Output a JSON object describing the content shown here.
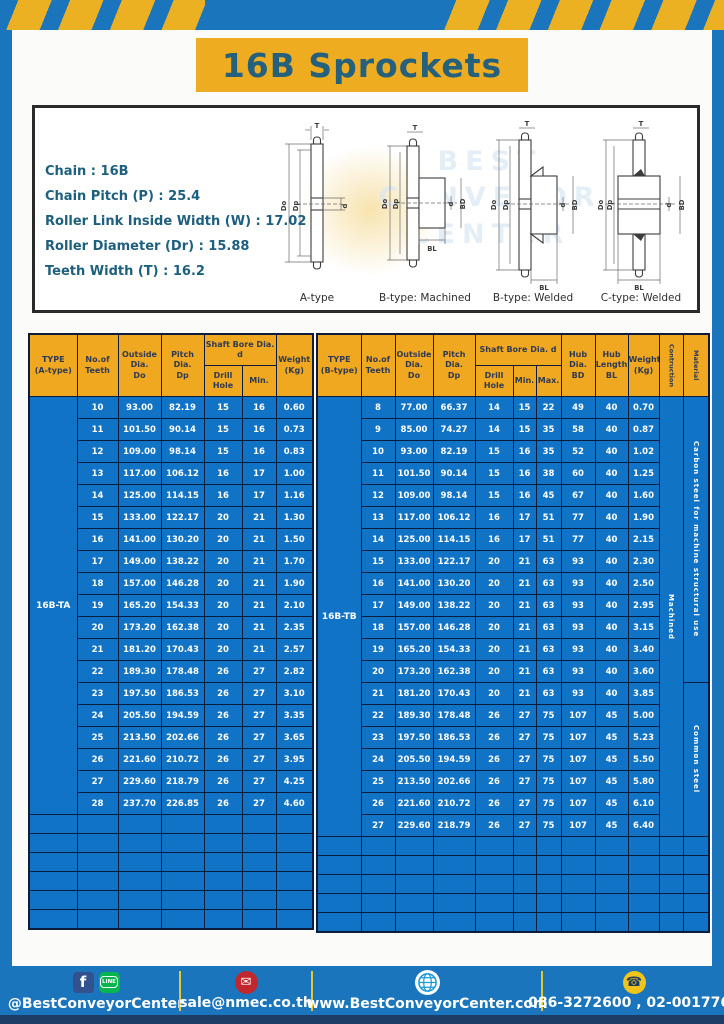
{
  "title": "16B Sprockets",
  "specs": {
    "lines": [
      "Chain : 16B",
      "Chain Pitch (P) : 25.4",
      "Roller Link Inside Width (W) : 17.02",
      "Roller Diameter (Dr) : 15.88",
      "Teeth Width (T) : 16.2"
    ],
    "diagram_labels": [
      "A-type",
      "B-type: Machined",
      "B-type: Welded",
      "C-type: Welded"
    ],
    "dim_labels": {
      "t": "T",
      "outer": "Do",
      "pitch": "Dp",
      "bore": "d",
      "hub": "BD",
      "hublen": "BL"
    },
    "watermark": "BEST CONVEYOR CENTER"
  },
  "table_a": {
    "headers": {
      "type": "TYPE\n(A-type)",
      "teeth": "No.of\nTeeth",
      "outside": "Outside\nDia.\nDo",
      "pitch": "Pitch Dia.\nDp",
      "shaft": "Shaft Bore Dia. d",
      "drill": "Drill Hole",
      "min": "Min.",
      "weight": "Weight\n(Kg)"
    },
    "type_label": "16B-TA",
    "rows": [
      [
        "10",
        "93.00",
        "82.19",
        "15",
        "16",
        "0.60"
      ],
      [
        "11",
        "101.50",
        "90.14",
        "15",
        "16",
        "0.73"
      ],
      [
        "12",
        "109.00",
        "98.14",
        "15",
        "16",
        "0.83"
      ],
      [
        "13",
        "117.00",
        "106.12",
        "16",
        "17",
        "1.00"
      ],
      [
        "14",
        "125.00",
        "114.15",
        "16",
        "17",
        "1.16"
      ],
      [
        "15",
        "133.00",
        "122.17",
        "20",
        "21",
        "1.30"
      ],
      [
        "16",
        "141.00",
        "130.20",
        "20",
        "21",
        "1.50"
      ],
      [
        "17",
        "149.00",
        "138.22",
        "20",
        "21",
        "1.70"
      ],
      [
        "18",
        "157.00",
        "146.28",
        "20",
        "21",
        "1.90"
      ],
      [
        "19",
        "165.20",
        "154.33",
        "20",
        "21",
        "2.10"
      ],
      [
        "20",
        "173.20",
        "162.38",
        "20",
        "21",
        "2.35"
      ],
      [
        "21",
        "181.20",
        "170.43",
        "20",
        "21",
        "2.57"
      ],
      [
        "22",
        "189.30",
        "178.48",
        "26",
        "27",
        "2.82"
      ],
      [
        "23",
        "197.50",
        "186.53",
        "26",
        "27",
        "3.10"
      ],
      [
        "24",
        "205.50",
        "194.59",
        "26",
        "27",
        "3.35"
      ],
      [
        "25",
        "213.50",
        "202.66",
        "26",
        "27",
        "3.65"
      ],
      [
        "26",
        "221.60",
        "210.72",
        "26",
        "27",
        "3.95"
      ],
      [
        "27",
        "229.60",
        "218.79",
        "26",
        "27",
        "4.25"
      ],
      [
        "28",
        "237.70",
        "226.85",
        "26",
        "27",
        "4.60"
      ]
    ],
    "empty_rows": 6
  },
  "table_b": {
    "headers": {
      "type": "TYPE\n(B-type)",
      "teeth": "No.of\nTeeth",
      "outside": "Outside\nDia.\nDo",
      "pitch": "Pitch Dia.\nDp",
      "shaft": "Shaft Bore Dia. d",
      "drill": "Drill Hole",
      "min": "Min.",
      "max": "Max.",
      "hub_dia": "Hub Dia.\nBD",
      "hub_len": "Hub\nLength\nBL",
      "weight": "Weight\n(Kg)",
      "construction": "Contruction",
      "material": "Material"
    },
    "type_label": "16B-TB",
    "construction_label": "Machined",
    "material_cells": [
      {
        "label": "Carbon steel for machine structural use",
        "rows": 13
      },
      {
        "label": "Common steel",
        "rows": 7
      }
    ],
    "rows": [
      [
        "8",
        "77.00",
        "66.37",
        "14",
        "15",
        "22",
        "49",
        "40",
        "0.70"
      ],
      [
        "9",
        "85.00",
        "74.27",
        "14",
        "15",
        "35",
        "58",
        "40",
        "0.87"
      ],
      [
        "10",
        "93.00",
        "82.19",
        "15",
        "16",
        "35",
        "52",
        "40",
        "1.02"
      ],
      [
        "11",
        "101.50",
        "90.14",
        "15",
        "16",
        "38",
        "60",
        "40",
        "1.25"
      ],
      [
        "12",
        "109.00",
        "98.14",
        "15",
        "16",
        "45",
        "67",
        "40",
        "1.60"
      ],
      [
        "13",
        "117.00",
        "106.12",
        "16",
        "17",
        "51",
        "77",
        "40",
        "1.90"
      ],
      [
        "14",
        "125.00",
        "114.15",
        "16",
        "17",
        "51",
        "77",
        "40",
        "2.15"
      ],
      [
        "15",
        "133.00",
        "122.17",
        "20",
        "21",
        "63",
        "93",
        "40",
        "2.30"
      ],
      [
        "16",
        "141.00",
        "130.20",
        "20",
        "21",
        "63",
        "93",
        "40",
        "2.50"
      ],
      [
        "17",
        "149.00",
        "138.22",
        "20",
        "21",
        "63",
        "93",
        "40",
        "2.95"
      ],
      [
        "18",
        "157.00",
        "146.28",
        "20",
        "21",
        "63",
        "93",
        "40",
        "3.15"
      ],
      [
        "19",
        "165.20",
        "154.33",
        "20",
        "21",
        "63",
        "93",
        "40",
        "3.40"
      ],
      [
        "20",
        "173.20",
        "162.38",
        "20",
        "21",
        "63",
        "93",
        "40",
        "3.60"
      ],
      [
        "21",
        "181.20",
        "170.43",
        "20",
        "21",
        "63",
        "93",
        "40",
        "3.85"
      ],
      [
        "22",
        "189.30",
        "178.48",
        "26",
        "27",
        "75",
        "107",
        "45",
        "5.00"
      ],
      [
        "23",
        "197.50",
        "186.53",
        "26",
        "27",
        "75",
        "107",
        "45",
        "5.23"
      ],
      [
        "24",
        "205.50",
        "194.59",
        "26",
        "27",
        "75",
        "107",
        "45",
        "5.50"
      ],
      [
        "25",
        "213.50",
        "202.66",
        "26",
        "27",
        "75",
        "107",
        "45",
        "5.80"
      ],
      [
        "26",
        "221.60",
        "210.72",
        "26",
        "27",
        "75",
        "107",
        "45",
        "6.10"
      ],
      [
        "27",
        "229.60",
        "218.79",
        "26",
        "27",
        "75",
        "107",
        "45",
        "6.40"
      ]
    ],
    "empty_rows": 5
  },
  "footer": {
    "social_text": "@BestConveyorCenter",
    "email": "sale@nmec.co.th",
    "website": "www.BestConveyorCenter.com",
    "phone": "086-3272600 , 02-0017766",
    "icons": {
      "facebook": "f",
      "line": "LINE",
      "mail": "✉",
      "phone": "☎"
    }
  },
  "colors": {
    "frame_blue": "#1b75bc",
    "stripe_yellow": "#ecb123",
    "banner_yellow": "#eeac20",
    "title_teal": "#25607c",
    "table_blue": "#1173c5",
    "header_orange": "#f0a821",
    "border_navy": "#0c1c3c",
    "bottom_strip_navy": "#1d3c66",
    "divider_yellow": "#e5c72e"
  }
}
